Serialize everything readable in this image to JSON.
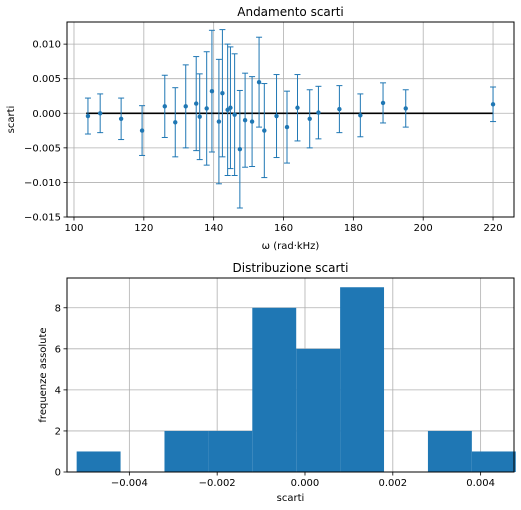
{
  "chart_data": [
    {
      "type": "scatter",
      "title": "Andamento scarti",
      "xlabel": "ω (rad·kHz)",
      "ylabel": "scarti",
      "xlim": [
        98,
        226
      ],
      "ylim": [
        -0.015,
        0.0132
      ],
      "xticks": [
        100,
        120,
        140,
        160,
        180,
        200,
        220
      ],
      "xtick_labels": [
        "100",
        "120",
        "140",
        "160",
        "180",
        "200",
        "220"
      ],
      "yticks": [
        -0.015,
        -0.01,
        -0.005,
        0.0,
        0.005,
        0.01
      ],
      "ytick_labels": [
        "−0.015",
        "−0.010",
        "−0.005",
        "0.000",
        "0.005",
        "0.010"
      ],
      "grid": true,
      "reference_line_y": 0.0,
      "points": [
        {
          "x": 104.0,
          "y": -0.0004,
          "err": 0.0026
        },
        {
          "x": 107.5,
          "y": 0.0,
          "err": 0.0028
        },
        {
          "x": 113.5,
          "y": -0.0008,
          "err": 0.003
        },
        {
          "x": 119.5,
          "y": -0.0025,
          "err": 0.0036
        },
        {
          "x": 126.0,
          "y": 0.001,
          "err": 0.0045
        },
        {
          "x": 129.0,
          "y": -0.0013,
          "err": 0.005
        },
        {
          "x": 132.0,
          "y": 0.001,
          "err": 0.006
        },
        {
          "x": 135.0,
          "y": 0.0014,
          "err": 0.0068
        },
        {
          "x": 136.0,
          "y": -0.0005,
          "err": 0.0062
        },
        {
          "x": 138.0,
          "y": 0.0007,
          "err": 0.0082
        },
        {
          "x": 139.5,
          "y": 0.0032,
          "err": 0.0088
        },
        {
          "x": 141.5,
          "y": -0.0012,
          "err": 0.009
        },
        {
          "x": 142.5,
          "y": 0.0029,
          "err": 0.0092
        },
        {
          "x": 144.0,
          "y": 0.0005,
          "err": 0.0095
        },
        {
          "x": 144.8,
          "y": 0.0008,
          "err": 0.0088
        },
        {
          "x": 146.0,
          "y": -0.0002,
          "err": 0.0088
        },
        {
          "x": 147.5,
          "y": -0.0052,
          "err": 0.0085
        },
        {
          "x": 149.0,
          "y": -0.001,
          "err": 0.0068
        },
        {
          "x": 151.0,
          "y": -0.0012,
          "err": 0.0065
        },
        {
          "x": 153.0,
          "y": 0.0045,
          "err": 0.0065
        },
        {
          "x": 154.5,
          "y": -0.0025,
          "err": 0.0068
        },
        {
          "x": 158.0,
          "y": -0.0004,
          "err": 0.006
        },
        {
          "x": 161.0,
          "y": -0.002,
          "err": 0.0052
        },
        {
          "x": 164.0,
          "y": 0.0008,
          "err": 0.0048
        },
        {
          "x": 167.5,
          "y": -0.0008,
          "err": 0.0042
        },
        {
          "x": 170.0,
          "y": 0.0001,
          "err": 0.0038
        },
        {
          "x": 176.0,
          "y": 0.0006,
          "err": 0.0034
        },
        {
          "x": 182.0,
          "y": -0.0003,
          "err": 0.0031
        },
        {
          "x": 188.5,
          "y": 0.0015,
          "err": 0.0029
        },
        {
          "x": 195.0,
          "y": 0.0007,
          "err": 0.0027
        },
        {
          "x": 220.0,
          "y": 0.0013,
          "err": 0.0025
        }
      ]
    },
    {
      "type": "bar",
      "title": "Distribuzione scarti",
      "xlabel": "scarti",
      "ylabel": "frequenze assolute",
      "xlim": [
        -0.00542,
        0.00476
      ],
      "ylim": [
        0,
        9.45
      ],
      "xticks": [
        -0.004,
        -0.002,
        0.0,
        0.002,
        0.004
      ],
      "xtick_labels": [
        "−0.004",
        "−0.002",
        "0.000",
        "0.002",
        "0.004"
      ],
      "yticks": [
        0,
        2,
        4,
        6,
        8
      ],
      "ytick_labels": [
        "0",
        "2",
        "4",
        "6",
        "8"
      ],
      "grid": true,
      "bin_edges": [
        -0.0052,
        -0.0042,
        -0.0032,
        -0.0022,
        -0.0012,
        -0.0002,
        0.0008,
        0.0018,
        0.0028,
        0.0038,
        0.0048
      ],
      "counts": [
        1,
        0,
        2,
        2,
        8,
        6,
        9,
        0,
        2,
        1
      ]
    }
  ],
  "colors": {
    "series": "#1f77b4",
    "reference_line": "#000000",
    "grid": "#b0b0b0",
    "axes": "#000000"
  }
}
